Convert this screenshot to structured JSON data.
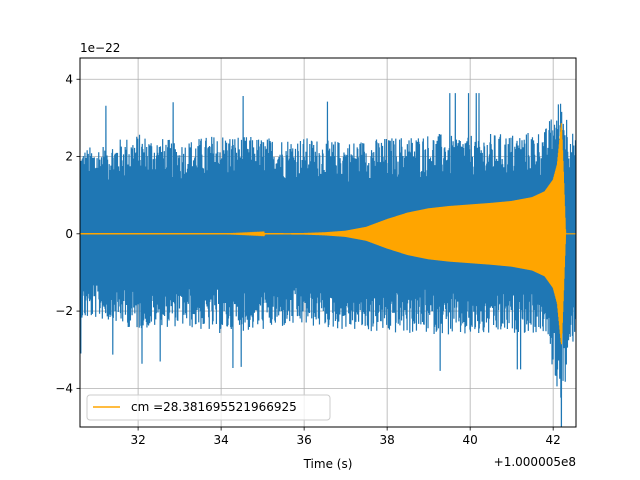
{
  "chart_data": {
    "type": "line",
    "title": "",
    "xlabel": "Time (s)",
    "ylabel": "",
    "x_offset_label": "+1.000005e8",
    "y_scale_label": "1e−22",
    "xlim": [
      30.6,
      42.55
    ],
    "ylim": [
      -5.0,
      4.55
    ],
    "xticks": [
      32,
      34,
      36,
      38,
      40,
      42
    ],
    "xtick_labels": [
      "32",
      "34",
      "36",
      "38",
      "40",
      "42"
    ],
    "yticks": [
      -4,
      -2,
      0,
      2,
      4
    ],
    "ytick_labels": [
      "−4",
      "−2",
      "0",
      "2",
      "4"
    ],
    "grid": true,
    "legend_position": "lower-left",
    "series": [
      {
        "name": "",
        "color": "#1f77b4",
        "kind": "noise-envelope",
        "x": [
          30.6,
          31.0,
          32.0,
          33.0,
          34.0,
          35.0,
          36.0,
          37.0,
          38.0,
          39.0,
          40.0,
          41.0,
          41.8,
          42.2,
          42.55
        ],
        "upper": [
          2.2,
          2.3,
          2.6,
          2.4,
          2.6,
          2.5,
          2.5,
          2.4,
          2.5,
          2.6,
          2.6,
          2.6,
          2.7,
          3.6,
          2.4
        ],
        "lower": [
          -2.3,
          -2.2,
          -2.5,
          -2.4,
          -2.6,
          -2.5,
          -2.4,
          -2.5,
          -2.6,
          -2.6,
          -2.7,
          -2.6,
          -2.6,
          -4.6,
          -2.4
        ]
      },
      {
        "name": "cm =28.381695521966925",
        "color": "#ffa500",
        "kind": "chirp-envelope",
        "x": [
          30.6,
          34.0,
          36.0,
          36.5,
          37.0,
          37.5,
          38.0,
          38.5,
          39.0,
          39.5,
          40.0,
          40.5,
          41.0,
          41.5,
          41.8,
          42.0,
          42.1,
          42.2,
          42.25,
          42.3,
          42.55
        ],
        "amplitude": [
          0.0,
          0.0,
          0.02,
          0.04,
          0.08,
          0.18,
          0.38,
          0.55,
          0.66,
          0.72,
          0.76,
          0.8,
          0.85,
          0.95,
          1.1,
          1.4,
          1.8,
          2.9,
          1.5,
          0.0,
          0.0
        ]
      }
    ]
  }
}
